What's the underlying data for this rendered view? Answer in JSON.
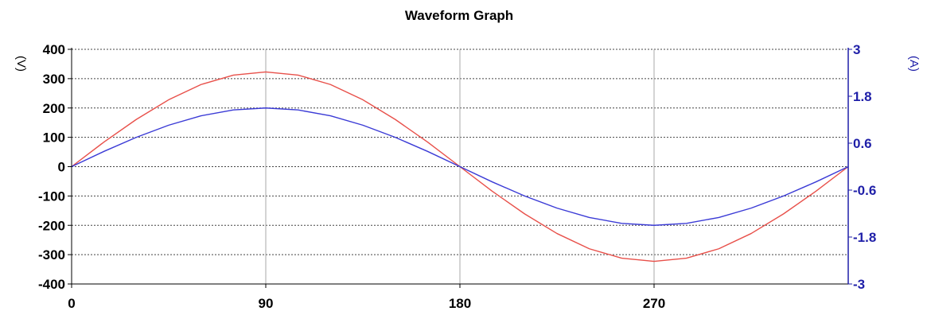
{
  "chart_data": {
    "type": "line",
    "title": "Waveform Graph",
    "x": [
      0,
      15,
      30,
      45,
      60,
      75,
      90,
      105,
      120,
      135,
      150,
      165,
      180,
      195,
      210,
      225,
      240,
      255,
      270,
      285,
      300,
      315,
      330,
      345,
      360
    ],
    "xlim": [
      0,
      360
    ],
    "x_ticks": [
      "0",
      "90",
      "180",
      "270"
    ],
    "y_left": {
      "label": "(V)",
      "ylim": [
        -400,
        400
      ],
      "ticks": [
        "400",
        "300",
        "200",
        "100",
        "0",
        "-100",
        "-200",
        "-300",
        "-400"
      ],
      "color": "#000000"
    },
    "y_right": {
      "label": "(A)",
      "ylim": [
        -3,
        3
      ],
      "ticks": [
        "3",
        "1.8",
        "0.6",
        "-0.6",
        "-1.8",
        "-3"
      ],
      "color": "#1f1fa8"
    },
    "grid": true,
    "series": [
      {
        "axis": "left",
        "color": "#e8504a",
        "values": [
          0,
          84,
          161,
          228,
          280,
          312,
          323,
          312,
          280,
          228,
          161,
          84,
          0,
          -84,
          -161,
          -228,
          -280,
          -312,
          -323,
          -312,
          -280,
          -228,
          -161,
          -84,
          0
        ]
      },
      {
        "axis": "right",
        "color": "#3b3bd6",
        "values": [
          0,
          0.39,
          0.75,
          1.06,
          1.3,
          1.45,
          1.5,
          1.45,
          1.3,
          1.06,
          0.75,
          0.39,
          0,
          -0.39,
          -0.75,
          -1.06,
          -1.3,
          -1.45,
          -1.5,
          -1.45,
          -1.3,
          -1.06,
          -0.75,
          -0.39,
          0
        ]
      }
    ]
  }
}
